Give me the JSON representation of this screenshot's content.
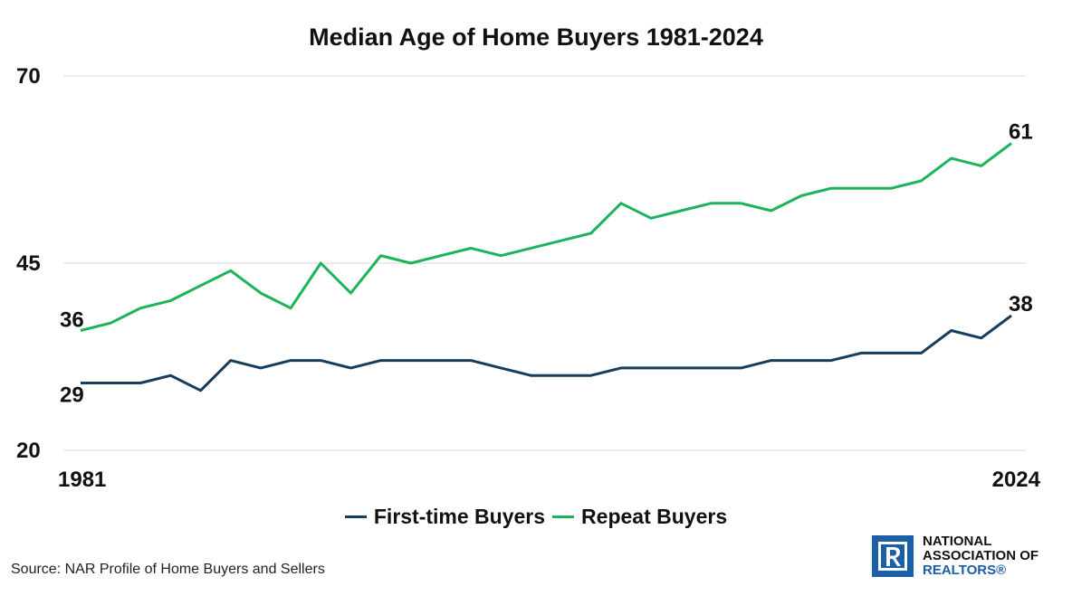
{
  "chart_data": {
    "type": "line",
    "title": "Median Age of Home Buyers 1981-2024",
    "xlabel": "",
    "ylabel": "",
    "x_tick_labels": [
      "1981",
      "2024"
    ],
    "y_tick_labels": [
      "70",
      "45",
      "20"
    ],
    "ylim": [
      20,
      70
    ],
    "grid": true,
    "legend_position": "bottom",
    "series": [
      {
        "name": "First-time Buyers",
        "color": "#173c5c",
        "values": [
          29,
          29,
          29,
          30,
          28,
          32,
          31,
          32,
          32,
          31,
          32,
          32,
          32,
          32,
          31,
          30,
          30,
          30,
          31,
          31,
          31,
          31,
          31,
          32,
          32,
          32,
          33,
          33,
          33,
          36,
          35,
          38
        ],
        "start_label": "29",
        "end_label": "38"
      },
      {
        "name": "Repeat Buyers",
        "color": "#1db35a",
        "values": [
          36,
          37,
          39,
          40,
          42,
          44,
          41,
          39,
          45,
          41,
          46,
          45,
          46,
          47,
          46,
          47,
          48,
          49,
          53,
          51,
          52,
          53,
          53,
          52,
          54,
          55,
          55,
          55,
          56,
          59,
          58,
          61
        ],
        "start_label": "36",
        "end_label": "61"
      }
    ]
  },
  "source": "Source: NAR Profile of Home Buyers and Sellers",
  "logo": {
    "line1": "NATIONAL",
    "line2": "ASSOCIATION OF",
    "line3": "REALTORS®",
    "color": "#1a5fa8"
  }
}
